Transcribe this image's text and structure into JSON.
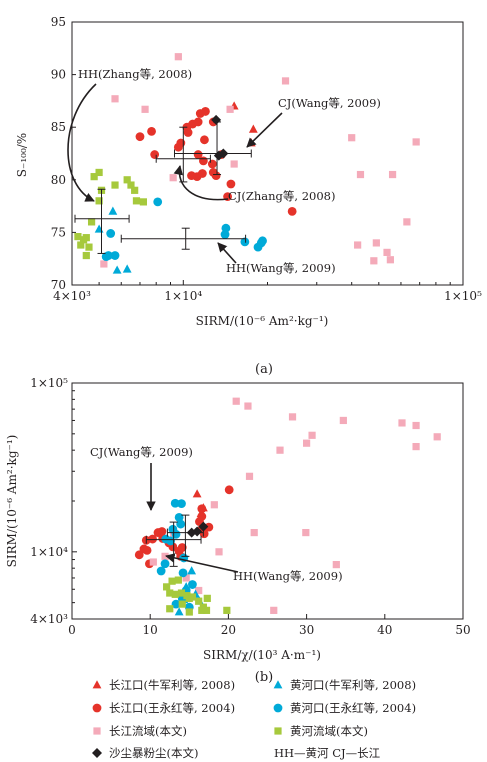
{
  "chart_data": [
    {
      "panel": "(a)",
      "type": "scatter",
      "xscale": "log",
      "xlim": [
        4000,
        100000
      ],
      "ylim": [
        70,
        95
      ],
      "xticks": [
        {
          "v": 4000,
          "label": "4×10³"
        },
        {
          "v": 10000,
          "label": "1×10⁴"
        },
        {
          "v": 100000,
          "label": "1×10⁵"
        }
      ],
      "yticks": [
        70,
        75,
        80,
        85,
        90,
        95
      ],
      "xlabel": "SIRM/(10⁻⁶ Am²·kg⁻¹)",
      "ylabel": "S₋₁₀₀/%",
      "series": [
        {
          "key": "cj_niu",
          "marker": "triangle",
          "color": "#e5332a",
          "points": [
            [
              15200,
              87.0
            ],
            [
              17800,
              84.8
            ],
            [
              17500,
              83.5
            ]
          ]
        },
        {
          "key": "cj_wang",
          "marker": "circle",
          "color": "#e5332a",
          "points": [
            [
              7000,
              84.1
            ],
            [
              7700,
              84.6
            ],
            [
              9600,
              83.1
            ],
            [
              10300,
              85.0
            ],
            [
              10800,
              85.3
            ],
            [
              11500,
              86.3
            ],
            [
              11300,
              85.5
            ],
            [
              12000,
              86.5
            ],
            [
              12800,
              85.5
            ],
            [
              10400,
              84.5
            ],
            [
              11900,
              83.8
            ],
            [
              9800,
              83.5
            ],
            [
              11300,
              82.4
            ],
            [
              11800,
              81.8
            ],
            [
              12700,
              81.5
            ],
            [
              12800,
              80.7
            ],
            [
              13100,
              80.4
            ],
            [
              11700,
              80.6
            ],
            [
              11200,
              80.3
            ],
            [
              10700,
              80.4
            ],
            [
              14800,
              79.6
            ],
            [
              14400,
              78.4
            ],
            [
              24500,
              77.0
            ],
            [
              13700,
              82.4
            ],
            [
              7900,
              82.4
            ]
          ]
        },
        {
          "key": "cj_basin",
          "marker": "square",
          "color": "#f4aab9",
          "points": [
            [
              9600,
              91.7
            ],
            [
              5700,
              87.7
            ],
            [
              7300,
              86.7
            ],
            [
              14700,
              86.7
            ],
            [
              23200,
              89.4
            ],
            [
              15200,
              81.5
            ],
            [
              40000,
              84.0
            ],
            [
              68000,
              83.6
            ],
            [
              43000,
              80.5
            ],
            [
              56000,
              80.5
            ],
            [
              63000,
              76.0
            ],
            [
              42000,
              73.8
            ],
            [
              49000,
              74.0
            ],
            [
              53500,
              73.1
            ],
            [
              48000,
              72.3
            ],
            [
              55000,
              72.4
            ],
            [
              5200,
              72.0
            ],
            [
              9200,
              80.2
            ]
          ]
        },
        {
          "key": "cj_dust",
          "marker": "diamond",
          "color": "#231f20",
          "points": [
            [
              13100,
              85.7
            ],
            [
              13400,
              82.3
            ],
            [
              13900,
              82.5
            ]
          ]
        },
        {
          "key": "hh_niu",
          "marker": "triangle",
          "color": "#00aad8",
          "points": [
            [
              5000,
              75.3
            ],
            [
              5800,
              71.4
            ],
            [
              6300,
              71.5
            ],
            [
              5600,
              77.0
            ]
          ]
        },
        {
          "key": "hh_wang",
          "marker": "circle",
          "color": "#00aad8",
          "points": [
            [
              5400,
              72.8
            ],
            [
              5700,
              72.8
            ],
            [
              5300,
              72.7
            ],
            [
              5500,
              74.9
            ],
            [
              8100,
              77.9
            ],
            [
              14200,
              75.4
            ],
            [
              14100,
              74.8
            ],
            [
              16600,
              74.1
            ],
            [
              19200,
              74.2
            ],
            [
              18500,
              73.6
            ],
            [
              19000,
              74.0
            ]
          ]
        },
        {
          "key": "hh_basin",
          "marker": "square",
          "color": "#a6c93c",
          "points": [
            [
              4800,
              80.3
            ],
            [
              5000,
              80.7
            ],
            [
              5100,
              79.0
            ],
            [
              5700,
              79.5
            ],
            [
              6300,
              80.0
            ],
            [
              6500,
              79.5
            ],
            [
              6700,
              79.0
            ],
            [
              6800,
              78.0
            ],
            [
              7200,
              77.9
            ],
            [
              5000,
              78.0
            ],
            [
              4700,
              76.0
            ],
            [
              4200,
              74.6
            ],
            [
              4400,
              74.3
            ],
            [
              4300,
              73.8
            ],
            [
              4600,
              73.6
            ],
            [
              4500,
              72.8
            ],
            [
              4500,
              74.5
            ]
          ]
        }
      ],
      "error_bars": [
        {
          "key": "hh_lit_a",
          "x": 5100,
          "xerr": [
            4100,
            6400
          ],
          "y": 76.3,
          "yerr": [
            73.0,
            79.1
          ]
        },
        {
          "key": "hh_err_a",
          "x": 10200,
          "xerr": [
            6000,
            16700
          ],
          "y": 74.4,
          "yerr": [
            73.4,
            75.4
          ]
        },
        {
          "key": "cj_lit_a",
          "x": 10000,
          "xerr": [
            8000,
            12500
          ],
          "y": 82.0,
          "yerr": [
            79.8,
            85.0
          ]
        },
        {
          "key": "cj_err_a",
          "x": 13200,
          "xerr": [
            9300,
            17500
          ],
          "y": 82.5,
          "yerr": [
            80.5,
            85.5
          ]
        }
      ],
      "annotations": [
        {
          "key": "hh_zhang",
          "text": "HH(Zhang等, 2008)"
        },
        {
          "key": "cj_wang",
          "text": "CJ(Wang等, 2009)"
        },
        {
          "key": "cj_zhang",
          "text": "CJ(Zhang等, 2008)"
        },
        {
          "key": "hh_wang",
          "text": "HH(Wang等, 2009)"
        }
      ]
    },
    {
      "panel": "(b)",
      "type": "scatter",
      "yscale": "log",
      "xlim": [
        0,
        50
      ],
      "ylim": [
        4000,
        100000
      ],
      "xticks": [
        0,
        10,
        20,
        30,
        40,
        50
      ],
      "yticks": [
        {
          "v": 4000,
          "label": "4×10³"
        },
        {
          "v": 10000,
          "label": "1×10⁴"
        },
        {
          "v": 100000,
          "label": "1×10⁵"
        }
      ],
      "xlabel": "SIRM/χ/(10³ A·m⁻¹)",
      "ylabel": "SIRM/(10⁻⁶ Am²·kg⁻¹)",
      "series": [
        {
          "key": "cj_niu",
          "marker": "triangle",
          "color": "#e5332a",
          "points": [
            [
              16.0,
              22000
            ],
            [
              16.8,
              18200
            ],
            [
              16.5,
              16800
            ]
          ]
        },
        {
          "key": "cj_wang",
          "marker": "circle",
          "color": "#e5332a",
          "points": [
            [
              9.5,
              11700
            ],
            [
              10.3,
              11900
            ],
            [
              9.2,
              10400
            ],
            [
              9.6,
              10200
            ],
            [
              8.6,
              9600
            ],
            [
              9.9,
              8500
            ],
            [
              11.0,
              13000
            ],
            [
              11.5,
              13200
            ],
            [
              11.6,
              12000
            ],
            [
              12.4,
              11300
            ],
            [
              12.9,
              10700
            ],
            [
              13.7,
              10100
            ],
            [
              13.9,
              9400
            ],
            [
              14.1,
              10600
            ],
            [
              16.3,
              15100
            ],
            [
              16.6,
              13600
            ],
            [
              16.9,
              12800
            ],
            [
              17.5,
              14000
            ],
            [
              16.6,
              16200
            ],
            [
              20.1,
              23300
            ],
            [
              16.6,
              18000
            ]
          ]
        },
        {
          "key": "cj_basin",
          "marker": "square",
          "color": "#f4aab9",
          "points": [
            [
              21.0,
              78000
            ],
            [
              22.5,
              73000
            ],
            [
              28.2,
              63000
            ],
            [
              34.7,
              60000
            ],
            [
              30.7,
              49000
            ],
            [
              30.0,
              44000
            ],
            [
              26.6,
              40000
            ],
            [
              42.2,
              58000
            ],
            [
              44.0,
              56000
            ],
            [
              46.7,
              48000
            ],
            [
              44.0,
              42000
            ],
            [
              22.7,
              28000
            ],
            [
              18.2,
              19000
            ],
            [
              18.8,
              10000
            ],
            [
              23.3,
              13000
            ],
            [
              29.9,
              13000
            ],
            [
              33.8,
              8400
            ],
            [
              25.8,
              4500
            ],
            [
              16.2,
              5900
            ],
            [
              14.6,
              7000
            ],
            [
              11.9,
              9400
            ],
            [
              10.4,
              8700
            ],
            [
              13.0,
              12700
            ]
          ]
        },
        {
          "key": "cj_dust",
          "marker": "diamond",
          "color": "#231f20",
          "points": [
            [
              15.3,
              13000
            ],
            [
              16.0,
              13200
            ],
            [
              16.8,
              14100
            ]
          ]
        },
        {
          "key": "hh_niu",
          "marker": "triangle",
          "color": "#00aad8",
          "points": [
            [
              13.7,
              4400
            ],
            [
              14.3,
              5200
            ],
            [
              14.6,
              6200
            ],
            [
              15.8,
              5600
            ],
            [
              15.3,
              7700
            ],
            [
              16.3,
              5100
            ]
          ]
        },
        {
          "key": "hh_wang",
          "marker": "circle",
          "color": "#00aad8",
          "points": [
            [
              13.2,
              19400
            ],
            [
              14.0,
              19300
            ],
            [
              13.7,
              16000
            ],
            [
              13.9,
              14600
            ],
            [
              12.9,
              13600
            ],
            [
              13.3,
              12700
            ],
            [
              12.0,
              11900
            ],
            [
              12.6,
              11600
            ],
            [
              11.9,
              8500
            ],
            [
              14.3,
              9200
            ],
            [
              11.4,
              7700
            ],
            [
              14.2,
              7500
            ],
            [
              13.3,
              4900
            ],
            [
              14.1,
              5300
            ],
            [
              14.6,
              5900
            ],
            [
              15.0,
              4700
            ],
            [
              15.4,
              6400
            ]
          ]
        },
        {
          "key": "hh_basin",
          "marker": "square",
          "color": "#a6c93c",
          "points": [
            [
              12.8,
              6700
            ],
            [
              13.6,
              6800
            ],
            [
              12.1,
              6200
            ],
            [
              12.5,
              5700
            ],
            [
              13.2,
              5600
            ],
            [
              14.0,
              5700
            ],
            [
              14.7,
              5500
            ],
            [
              15.0,
              5300
            ],
            [
              15.4,
              5400
            ],
            [
              16.2,
              5100
            ],
            [
              16.6,
              4500
            ],
            [
              17.2,
              4500
            ],
            [
              19.8,
              4500
            ],
            [
              16.8,
              4700
            ],
            [
              17.3,
              5300
            ],
            [
              14.1,
              4900
            ],
            [
              12.5,
              4600
            ],
            [
              15.0,
              4400
            ]
          ]
        }
      ],
      "error_bars": [
        {
          "key": "cj_err_b",
          "x": 13.0,
          "xerr": [
            9.5,
            16.5
          ],
          "y": 11800,
          "yerr": [
            8200,
            15000
          ]
        },
        {
          "key": "hh_err_b",
          "x": 14.5,
          "xerr": [
            12.2,
            16.8
          ],
          "y": 13000,
          "yerr": [
            9400,
            16500
          ]
        }
      ],
      "annotations": [
        {
          "key": "cj_wang",
          "text": "CJ(Wang等, 2009)"
        },
        {
          "key": "hh_wang",
          "text": "HH(Wang等, 2009)"
        }
      ]
    }
  ],
  "legend": [
    {
      "key": "cj_niu",
      "text": "长江口(牛军利等, 2008)",
      "marker": "triangle",
      "color": "#e5332a"
    },
    {
      "key": "hh_niu",
      "text": "黄河口(牛军利等, 2008)",
      "marker": "triangle",
      "color": "#00aad8"
    },
    {
      "key": "cj_wang",
      "text": "长江口(王永红等, 2004)",
      "marker": "circle",
      "color": "#e5332a"
    },
    {
      "key": "hh_wang",
      "text": "黄河口(王永红等, 2004)",
      "marker": "circle",
      "color": "#00aad8"
    },
    {
      "key": "cj_basin",
      "text": "长江流域(本文)",
      "marker": "square",
      "color": "#f4aab9"
    },
    {
      "key": "hh_basin",
      "text": "黄河流域(本文)",
      "marker": "square",
      "color": "#a6c93c"
    },
    {
      "key": "cj_dust",
      "text": "沙尘暴粉尘(本文)",
      "marker": "diamond",
      "color": "#231f20"
    },
    {
      "key": "abbrev",
      "text": "HH—黄河   CJ—长江"
    }
  ]
}
